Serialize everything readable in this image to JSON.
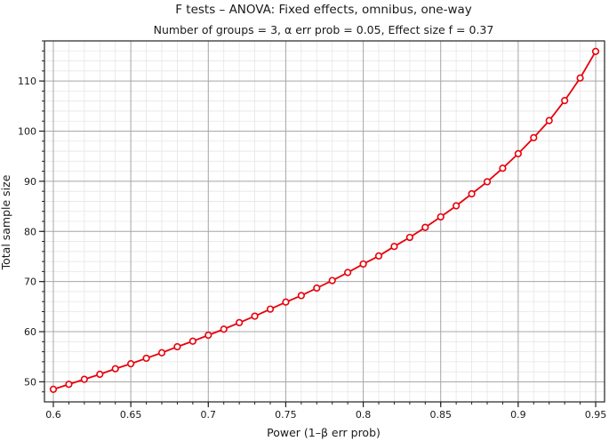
{
  "chart_data": {
    "type": "line",
    "title": "F tests – ANOVA: Fixed effects, omnibus, one-way",
    "subtitle": "Number of groups = 3, α err prob = 0.05, Effect size f = 0.37",
    "xlabel": "Power (1–β err prob)",
    "ylabel": "Total sample size",
    "xlim": [
      0.6,
      0.95
    ],
    "ylim": [
      46,
      118
    ],
    "x_ticks": [
      0.6,
      0.65,
      0.7,
      0.75,
      0.8,
      0.85,
      0.9,
      0.95
    ],
    "x_tick_labels": [
      "0.6",
      "0.65",
      "0.7",
      "0.75",
      "0.8",
      "0.85",
      "0.9",
      "0.95"
    ],
    "y_ticks": [
      50,
      60,
      70,
      80,
      90,
      100,
      110
    ],
    "y_tick_labels": [
      "50",
      "60",
      "70",
      "80",
      "90",
      "100",
      "110"
    ],
    "grid": true,
    "series": [
      {
        "color": "#e8000b",
        "x": [
          0.6,
          0.61,
          0.62,
          0.63,
          0.64,
          0.65,
          0.66,
          0.67,
          0.68,
          0.69,
          0.7,
          0.71,
          0.72,
          0.73,
          0.74,
          0.75,
          0.76,
          0.77,
          0.78,
          0.79,
          0.8,
          0.81,
          0.82,
          0.83,
          0.84,
          0.85,
          0.86,
          0.87,
          0.88,
          0.89,
          0.9,
          0.91,
          0.92,
          0.93,
          0.94,
          0.95
        ],
        "y": [
          48.5,
          49.5,
          50.5,
          51.5,
          52.6,
          53.6,
          54.7,
          55.8,
          57.0,
          58.1,
          59.3,
          60.5,
          61.8,
          63.1,
          64.5,
          65.9,
          67.2,
          68.7,
          70.2,
          71.8,
          73.5,
          75.1,
          77.0,
          78.8,
          80.8,
          82.9,
          85.1,
          87.5,
          89.9,
          92.6,
          95.5,
          98.7,
          102.1,
          106.1,
          110.6,
          115.9
        ]
      }
    ]
  }
}
